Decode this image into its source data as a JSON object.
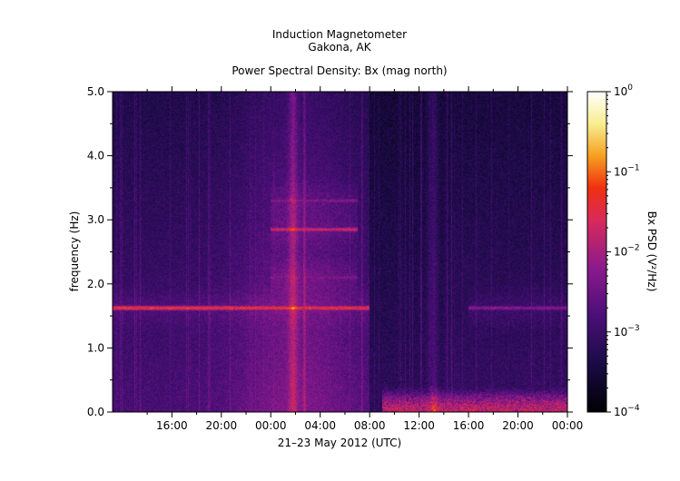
{
  "chart_data": {
    "type": "heatmap",
    "title_lines": [
      "Induction Magnetometer",
      "Gakona, AK"
    ],
    "subtitle": "Power Spectral Density: Bx (mag north)",
    "xlabel": "21–23 May 2012 (UTC)",
    "ylabel": "frequency (Hz)",
    "x_ticks": [
      "16:00",
      "20:00",
      "00:00",
      "04:00",
      "08:00",
      "12:00",
      "16:00",
      "20:00",
      "00:00"
    ],
    "x_ticks_hours": [
      16,
      20,
      24,
      28,
      32,
      36,
      40,
      44,
      48
    ],
    "xlim_hours": [
      11.2,
      48
    ],
    "y_ticks": [
      "0.0",
      "1.0",
      "2.0",
      "3.0",
      "4.0",
      "5.0"
    ],
    "ylim": [
      0,
      5
    ],
    "colorbar": {
      "label": "Bx PSD (V²/Hz)",
      "scale": "log",
      "range": [
        0.0001,
        1
      ],
      "ticks": [
        {
          "value": 1,
          "label_base": "10",
          "label_exp": "0"
        },
        {
          "value": 0.1,
          "label_base": "10",
          "label_exp": "−1"
        },
        {
          "value": 0.01,
          "label_base": "10",
          "label_exp": "−2"
        },
        {
          "value": 0.001,
          "label_base": "10",
          "label_exp": "−3"
        },
        {
          "value": 0.0001,
          "label_base": "10",
          "label_exp": "−4"
        }
      ]
    },
    "features": [
      {
        "name": "Pc1 band",
        "t_start": 11.2,
        "t_end": 32,
        "freq": 1.62,
        "level": 0.05
      },
      {
        "name": "Pc1 band",
        "t_start": 40,
        "t_end": 48,
        "freq": 1.62,
        "level": 0.005
      },
      {
        "name": "Pc1 harmonic",
        "t_start": 24,
        "t_end": 31,
        "freq": 2.85,
        "level": 0.02
      },
      {
        "name": "Pc1 harmonic",
        "t_start": 24,
        "t_end": 31,
        "freq": 3.3,
        "level": 0.005
      },
      {
        "name": "Pc1 harmonic",
        "t_start": 24,
        "t_end": 31,
        "freq": 2.1,
        "level": 0.005
      },
      {
        "name": "broadband burst",
        "t_center": 25.8,
        "level": 0.02
      },
      {
        "name": "low-frequency noise",
        "t_start": 33,
        "t_end": 48,
        "freq_max": 0.4,
        "level": 0.05
      },
      {
        "name": "broadband spike",
        "t_center": 37.2,
        "level": 0.005
      }
    ]
  }
}
